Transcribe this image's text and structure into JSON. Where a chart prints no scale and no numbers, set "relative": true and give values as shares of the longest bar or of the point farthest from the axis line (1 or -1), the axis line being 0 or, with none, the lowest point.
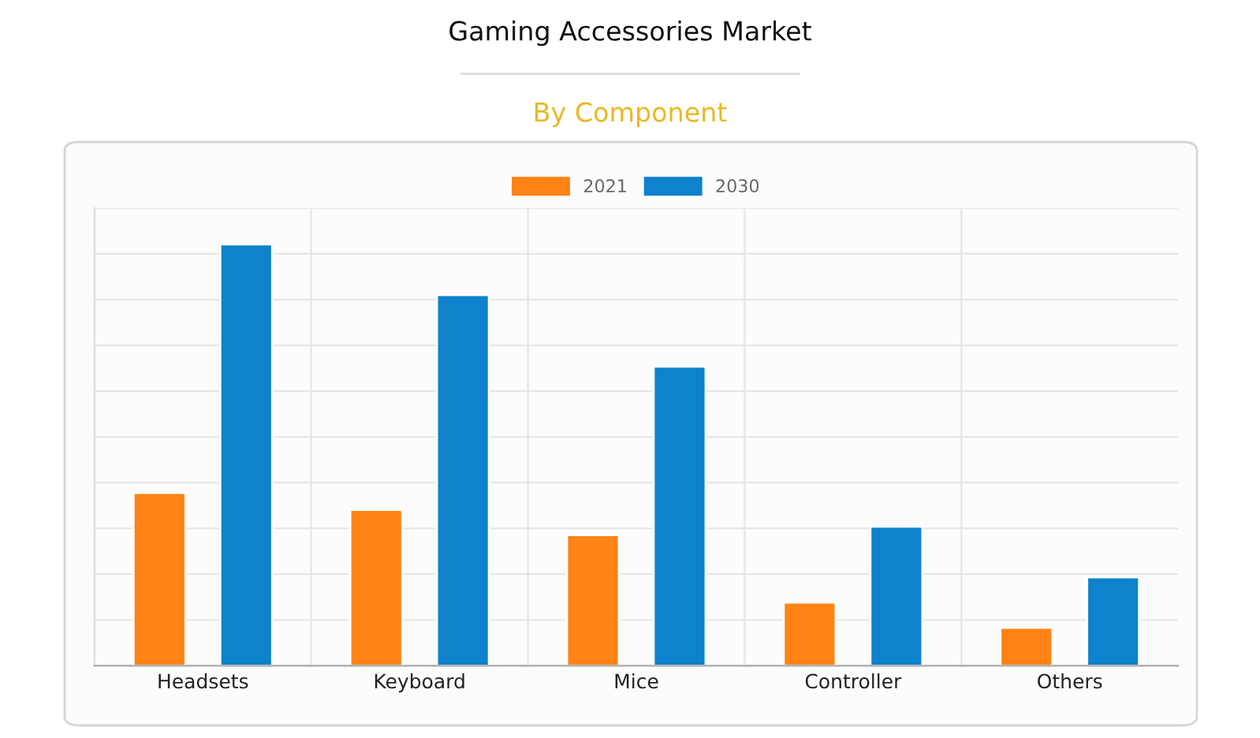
{
  "chart_data": {
    "type": "bar",
    "title": "Gaming Accessories Market",
    "subtitle": "By Component",
    "categories": [
      "Headsets",
      "Keyboard",
      "Mice",
      "Controller",
      "Others"
    ],
    "relative": true,
    "series": [
      {
        "name": "2021",
        "color": "#ff8315",
        "values": [
          0.41,
          0.37,
          0.31,
          0.15,
          0.09
        ]
      },
      {
        "name": "2030",
        "color": "#0e82cc",
        "values": [
          1,
          0.88,
          0.71,
          0.33,
          0.21
        ]
      }
    ],
    "grid": true,
    "legend": "top"
  }
}
